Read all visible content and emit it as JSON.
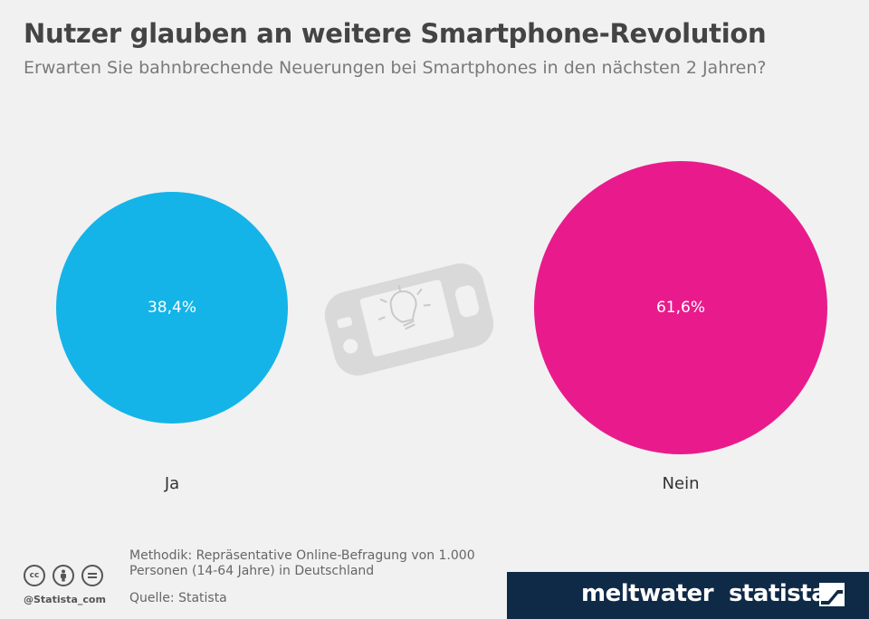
{
  "chart_data": {
    "type": "bubble",
    "title": "Nutzer glauben an weitere Smartphone-Revolution",
    "subtitle": "Erwarten Sie bahnbrechende Neuerungen bei Smartphones in den nächsten 2 Jahren?",
    "categories": [
      "Ja",
      "Nein"
    ],
    "values": [
      38.4,
      61.6
    ],
    "value_labels": [
      "38,4%",
      "61,6%"
    ],
    "colors": [
      "#14b4e8",
      "#e91b8c"
    ],
    "unit": "%"
  },
  "icon": "smartphone-lightbulb-icon",
  "footer": {
    "methodik": "Methodik: Repräsentative Online-Befragung von 1.000 Personen (14-64 Jahre) in Deutschland",
    "quelle": "Quelle: Statista",
    "handle": "@Statista_com",
    "license_icons": [
      "cc-icon",
      "by-icon",
      "nd-icon"
    ],
    "brand_meltwater": "meltwater",
    "brand_statista": "statista"
  }
}
